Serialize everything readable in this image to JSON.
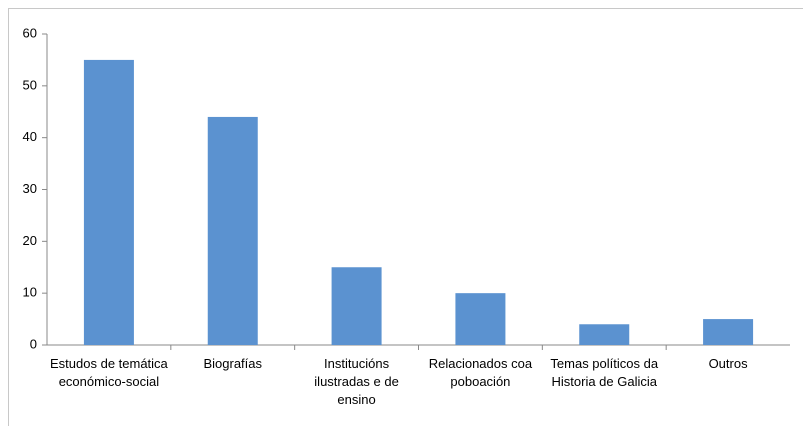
{
  "chart_data": {
    "type": "bar",
    "categories": [
      "Estudos de temática económico-social",
      "Biografías",
      "Institucións ilustradas e de ensino",
      "Relacionados coa poboación",
      "Temas políticos da Historia de Galicia",
      "Outros"
    ],
    "values": [
      55,
      44,
      15,
      10,
      4,
      5
    ],
    "color": "#5b92d0",
    "ylim": [
      0,
      60
    ],
    "yticks": [
      0,
      10,
      20,
      30,
      40,
      50,
      60
    ],
    "grid": false
  }
}
